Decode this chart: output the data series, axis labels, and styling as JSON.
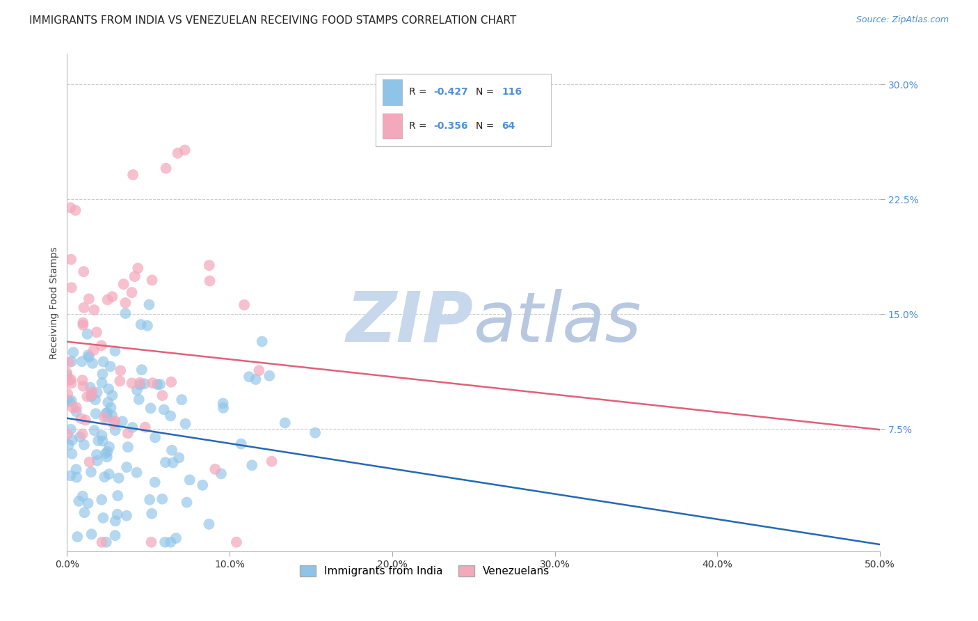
{
  "title": "IMMIGRANTS FROM INDIA VS VENEZUELAN RECEIVING FOOD STAMPS CORRELATION CHART",
  "source": "Source: ZipAtlas.com",
  "ylabel": "Receiving Food Stamps",
  "xlim": [
    0.0,
    0.5
  ],
  "ylim": [
    -0.005,
    0.32
  ],
  "yticks": [
    0.075,
    0.15,
    0.225,
    0.3
  ],
  "ytick_labels": [
    "7.5%",
    "15.0%",
    "22.5%",
    "30.0%"
  ],
  "xticks": [
    0.0,
    0.1,
    0.2,
    0.3,
    0.4,
    0.5
  ],
  "xtick_labels": [
    "0.0%",
    "10.0%",
    "20.0%",
    "30.0%",
    "40.0%",
    "50.0%"
  ],
  "india_R": -0.427,
  "india_N": 116,
  "venezuela_R": -0.356,
  "venezuela_N": 64,
  "india_color": "#8ec4e8",
  "venezuela_color": "#f4a8bc",
  "india_line_color": "#2468b4",
  "venezuela_line_color": "#e0607a",
  "background_color": "#ffffff",
  "grid_color": "#cccccc",
  "watermark_zip_color": "#c8d8ec",
  "watermark_atlas_color": "#b8c8e0",
  "legend_india_label": "Immigrants from India",
  "legend_venezuela_label": "Venezuelans",
  "title_fontsize": 11,
  "axis_label_fontsize": 10,
  "tick_fontsize": 10,
  "legend_fontsize": 11,
  "right_tick_color": "#4a90d9",
  "legend_text_color": "#4a90d9",
  "india_line_intercept": 0.082,
  "india_line_slope": -0.165,
  "venezuela_line_intercept": 0.132,
  "venezuela_line_slope": -0.115
}
